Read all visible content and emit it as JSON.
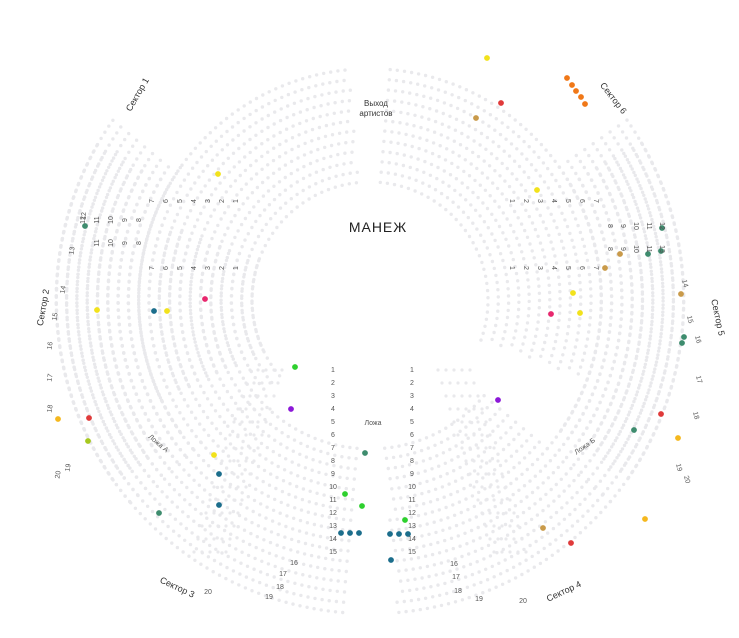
{
  "center_label": "МАНЕЖ",
  "exit_label": [
    "Выход",
    "артистов"
  ],
  "sectors": [
    {
      "name": "Сектор 1"
    },
    {
      "name": "Сектор 2"
    },
    {
      "name": "Сектор 3"
    },
    {
      "name": "Сектор 4"
    },
    {
      "name": "Сектор 5"
    },
    {
      "name": "Сектор 6"
    }
  ],
  "boxes": [
    {
      "name": "Ложа А"
    },
    {
      "name": "Ложа"
    },
    {
      "name": "Ложа Б"
    }
  ],
  "colors": {
    "free": "#e9e9ec",
    "yellow": "#f2e21c",
    "orange": "#f07818",
    "red": "#e03a3a",
    "tan": "#c99a4a",
    "teal": "#3e8c6e",
    "navy": "#1c6e8c",
    "green": "#2ed02e",
    "lime": "#a6c81e",
    "pink": "#e8286e",
    "purple": "#8c18d8",
    "gold": "#f5b81e"
  },
  "row_numbers": {
    "sector1": [
      "1",
      "2",
      "3",
      "4",
      "5",
      "6",
      "7",
      "8",
      "9",
      "10",
      "11",
      "12"
    ],
    "sector6": [
      "1",
      "2",
      "3",
      "4",
      "5",
      "6",
      "7",
      "8",
      "9",
      "10",
      "11",
      "12"
    ],
    "sector2": [
      "1",
      "2",
      "3",
      "4",
      "5",
      "6",
      "7",
      "8",
      "9",
      "10",
      "11",
      "12",
      "13",
      "14",
      "15",
      "16",
      "17",
      "18",
      "19",
      "20"
    ],
    "sector5": [
      "1",
      "2",
      "3",
      "4",
      "5",
      "6",
      "7",
      "8",
      "9",
      "10",
      "11",
      "12",
      "13",
      "14",
      "15",
      "16",
      "17",
      "18",
      "19",
      "20"
    ],
    "box_left_rows": [
      "1",
      "2",
      "3",
      "4",
      "5",
      "6",
      "7",
      "8",
      "9",
      "10",
      "11",
      "12",
      "13",
      "14",
      "15"
    ],
    "box_right_rows": [
      "1",
      "2",
      "3",
      "4",
      "5",
      "6",
      "7",
      "8",
      "9",
      "10",
      "11",
      "12",
      "13",
      "14",
      "15"
    ],
    "sector3_tail": [
      "16",
      "17",
      "18",
      "19",
      "20"
    ],
    "sector4_tail": [
      "16",
      "17",
      "18",
      "19",
      "20"
    ]
  }
}
